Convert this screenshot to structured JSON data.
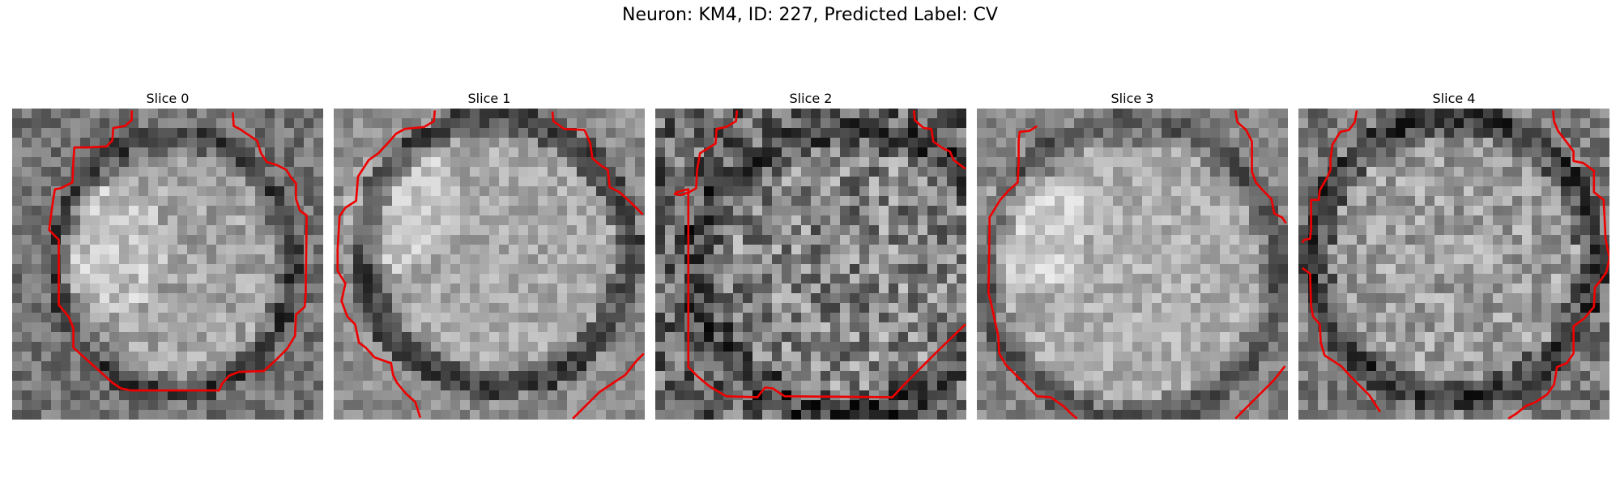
{
  "figure": {
    "title": "Neuron: KM4, ID: 227, Predicted Label: CV"
  },
  "panels": [
    {
      "label": "Slice 0"
    },
    {
      "label": "Slice 1"
    },
    {
      "label": "Slice 2"
    },
    {
      "label": "Slice 3"
    },
    {
      "label": "Slice 4"
    }
  ],
  "colors": {
    "contour": "#ee0000",
    "background": "#ffffff"
  },
  "image": {
    "colormap": "grayscale",
    "grid_cells": 32
  }
}
